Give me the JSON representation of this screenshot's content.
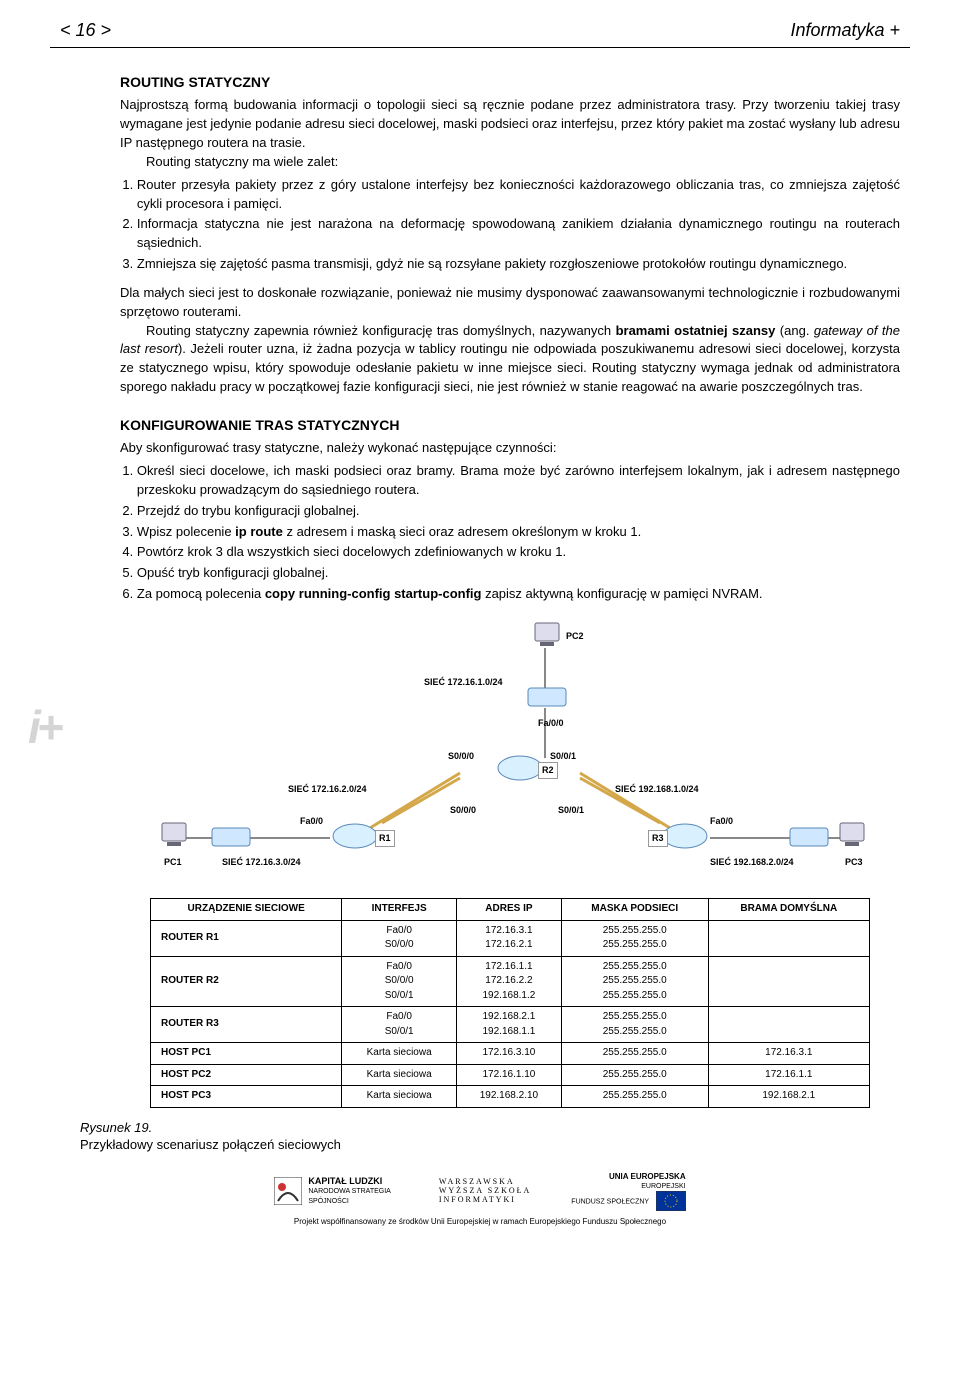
{
  "header": {
    "page_num": "< 16 >",
    "title": "Informatyka +"
  },
  "sec1": {
    "title": "ROUTING STATYCZNY",
    "p1": "Najprostszą formą budowania informacji o topologii sieci są ręcznie podane przez administratora trasy. Przy tworzeniu takiej trasy wymagane jest jedynie podanie adresu sieci docelowej, maski podsieci oraz interfejsu, przez który pakiet ma zostać wysłany lub adresu IP następnego routera na trasie.",
    "p2_lead": "Routing statyczny ma wiele zalet:",
    "items": [
      "Router przesyła pakiety przez z góry ustalone interfejsy bez konieczności każdorazowego obliczania tras, co zmniejsza zajętość cykli procesora i pamięci.",
      "Informacja statyczna nie jest narażona na deformację spowodowaną zanikiem działania dynamicznego routingu na routerach sąsiednich.",
      "Zmniejsza się zajętość pasma transmisji, gdyż nie są rozsyłane pakiety rozgłoszeniowe protokołów routingu dynamicznego."
    ],
    "p3": "Dla małych sieci jest to doskonałe rozwiązanie, ponieważ nie musimy dysponować zaawansowanymi technologicznie i rozbudowanymi sprzętowo routerami.",
    "p4a": "Routing statyczny zapewnia również konfigurację tras domyślnych, nazywanych ",
    "p4b": "bramami ostatniej szansy",
    "p4c": " (ang. ",
    "p4d": "gateway of the last resort",
    "p4e": "). Jeżeli router uzna, iż żadna pozycja w tablicy routingu nie odpowiada poszukiwanemu adresowi sieci docelowej, korzysta ze statycznego wpisu, który spowoduje odesłanie pakietu w inne miejsce sieci. Routing statyczny wymaga jednak od administratora sporego nakładu pracy w początkowej fazie konfiguracji sieci, nie jest również w stanie reagować na awarie poszczególnych tras."
  },
  "sec2": {
    "title": "KONFIGUROWANIE TRAS STATYCZNYCH",
    "lead": "Aby skonfigurować trasy statyczne, należy wykonać następujące czynności:",
    "items": [
      "Określ sieci docelowe, ich maski podsieci oraz bramy. Brama może być zarówno interfejsem lokalnym, jak i adresem następnego przeskoku prowadzącym do sąsiedniego routera.",
      "Przejdź do trybu konfiguracji globalnej.",
      {
        "pre": "Wpisz polecenie ",
        "cmd": "ip route",
        "post": " z adresem i maską sieci oraz adresem określonym w kroku 1."
      },
      "Powtórz krok 3 dla wszystkich sieci docelowych zdefiniowanych w kroku 1.",
      "Opuść tryb konfiguracji globalnej.",
      {
        "pre": "Za pomocą polecenia ",
        "cmd": "copy running-config startup-config",
        "post": " zapisz aktywną konfigurację w pamięci NVRAM."
      }
    ]
  },
  "diagram": {
    "labels": {
      "pc1": "PC1",
      "pc2": "PC2",
      "pc3": "PC3",
      "r1": "R1",
      "r2": "R2",
      "r3": "R3",
      "net1": "SIEĆ 172.16.1.0/24",
      "net2": "SIEĆ 172.16.2.0/24",
      "net3": "SIEĆ 172.16.3.0/24",
      "net4": "SIEĆ 192.168.1.0/24",
      "net5": "SIEĆ 192.168.2.0/24",
      "fa00": "Fa/0/0",
      "fa00b": "Fa0/0",
      "s000": "S0/0/0",
      "s001": "S0/0/1"
    }
  },
  "table": {
    "headers": [
      "URZĄDZENIE SIECIOWE",
      "INTERFEJS",
      "ADRES IP",
      "MASKA PODSIECI",
      "BRAMA DOMYŚLNA"
    ],
    "rows": [
      [
        "ROUTER R1",
        "Fa0/0\nS0/0/0",
        "172.16.3.1\n172.16.2.1",
        "255.255.255.0\n255.255.255.0",
        ""
      ],
      [
        "ROUTER R2",
        "Fa0/0\nS0/0/0\nS0/0/1",
        "172.16.1.1\n172.16.2.2\n192.168.1.2",
        "255.255.255.0\n255.255.255.0\n255.255.255.0",
        ""
      ],
      [
        "ROUTER R3",
        "Fa0/0\nS0/0/1",
        "192.168.2.1\n192.168.1.1",
        "255.255.255.0\n255.255.255.0",
        ""
      ],
      [
        "HOST PC1",
        "Karta sieciowa",
        "172.16.3.10",
        "255.255.255.0",
        "172.16.3.1"
      ],
      [
        "HOST PC2",
        "Karta sieciowa",
        "172.16.1.10",
        "255.255.255.0",
        "172.16.1.1"
      ],
      [
        "HOST PC3",
        "Karta sieciowa",
        "192.168.2.10",
        "255.255.255.0",
        "192.168.2.1"
      ]
    ]
  },
  "caption": {
    "fig": "Rysunek 19.",
    "text": "Przykładowy scenariusz połączeń sieciowych"
  },
  "footer": {
    "logo1a": "KAPITAŁ LUDZKI",
    "logo1b": "NARODOWA STRATEGIA SPÓJNOŚCI",
    "logo2a": "WARSZAWSKA",
    "logo2b": "WYŻSZA SZKOŁA",
    "logo2c": "INFORMATYKI",
    "logo3a": "UNIA EUROPEJSKA",
    "logo3b": "EUROPEJSKI",
    "logo3c": "FUNDUSZ SPOŁECZNY",
    "sub": "Projekt współfinansowany ze środków Unii Europejskiej w ramach Europejskiego Funduszu Społecznego"
  },
  "colors": {
    "text": "#000000",
    "bg": "#ffffff",
    "icon_gray": "#d5d5d5",
    "table_border": "#000000"
  }
}
